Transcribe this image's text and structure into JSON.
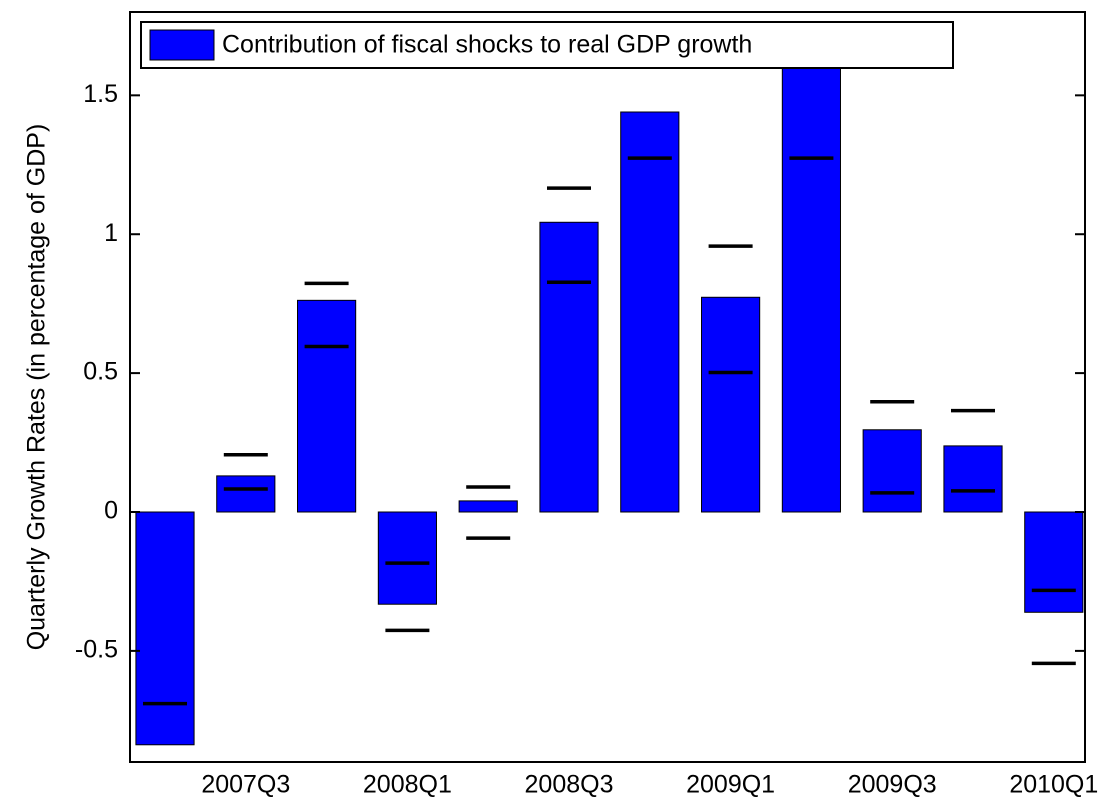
{
  "chart_data": {
    "type": "bar",
    "legend": "Contribution of fiscal shocks to real GDP growth",
    "ylabel": "Quarterly Growth Rates (in percentage of GDP)",
    "categories": [
      null,
      "2007Q3",
      null,
      "2008Q1",
      null,
      "2008Q3",
      null,
      "2009Q1",
      null,
      "2009Q3",
      null,
      "2010Q1"
    ],
    "values": [
      -0.838,
      0.13,
      0.762,
      -0.332,
      0.04,
      1.043,
      1.44,
      0.773,
      1.62,
      0.296,
      0.238,
      -0.361
    ],
    "color": "#0000ff",
    "bands": {
      "upper": [
        null,
        0.206,
        0.823,
        -0.184,
        0.09,
        1.166,
        null,
        0.957,
        null,
        0.397,
        0.365,
        -0.282
      ],
      "lower": [
        -0.69,
        0.083,
        0.596,
        -0.426,
        -0.094,
        0.827,
        1.274,
        0.502,
        1.274,
        0.069,
        0.076,
        -0.545
      ]
    },
    "ylim": [
      -0.9,
      1.8
    ],
    "yticks": [
      -0.5,
      0,
      0.5,
      1,
      1.5
    ]
  }
}
